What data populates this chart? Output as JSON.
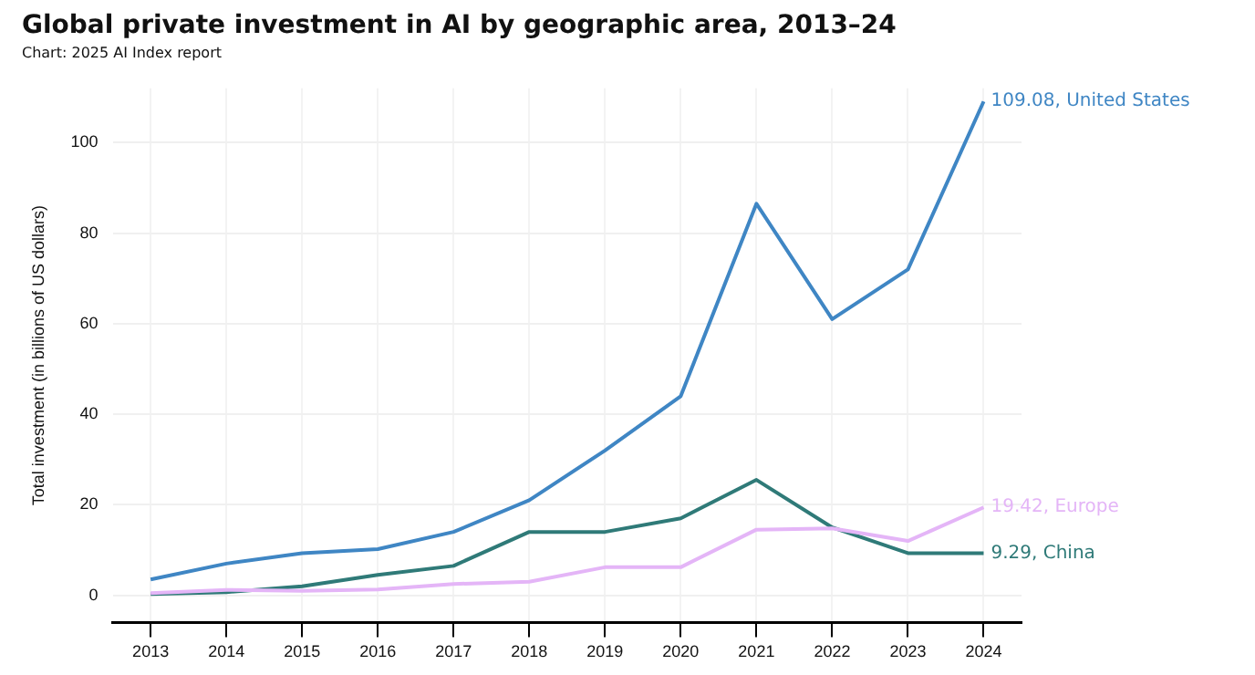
{
  "chart_data": {
    "type": "line",
    "title": "Global private investment in AI by geographic area, 2013–24",
    "subtitle": "Chart: 2025 AI Index report",
    "ylabel": "Total investment (in billions of US dollars)",
    "categories": [
      "2013",
      "2014",
      "2015",
      "2016",
      "2017",
      "2018",
      "2019",
      "2020",
      "2021",
      "2022",
      "2023",
      "2024"
    ],
    "series": [
      {
        "name": "United States",
        "color": "#3f86c4",
        "values": [
          3.5,
          7,
          9.3,
          10.2,
          14,
          21,
          32,
          44,
          86.5,
          61,
          72,
          109.08
        ],
        "value_labels": [
          null,
          null,
          null,
          null,
          null,
          null,
          null,
          null,
          null,
          null,
          null,
          "109.08,"
        ]
      },
      {
        "name": "Europe",
        "color": "#e4b5f7",
        "values": [
          0.5,
          1.2,
          1,
          1.3,
          2.5,
          3,
          6.2,
          6.2,
          14.5,
          14.8,
          12,
          19.42
        ],
        "value_labels": [
          null,
          null,
          null,
          null,
          null,
          null,
          null,
          null,
          null,
          null,
          null,
          "19.42,"
        ]
      },
      {
        "name": "China",
        "color": "#2f7a78",
        "values": [
          0.3,
          0.7,
          2,
          4.5,
          6.5,
          14,
          14,
          17,
          25.5,
          15,
          9.3,
          9.29
        ],
        "value_labels": [
          null,
          null,
          null,
          null,
          null,
          null,
          null,
          null,
          null,
          null,
          null,
          "9.29,"
        ]
      }
    ],
    "ylim": [
      -6,
      112
    ],
    "yticks": [
      0,
      20,
      40,
      60,
      80,
      100
    ],
    "grid": true,
    "legend": false,
    "marker": "none",
    "line_style": "solid"
  }
}
